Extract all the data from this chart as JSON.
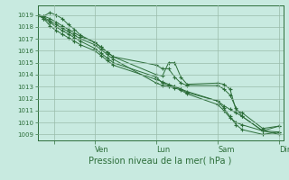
{
  "bg_color": "#c8eae0",
  "grid_color": "#99bbaa",
  "line_color": "#2d6e3a",
  "title": "Pression niveau de la mer( hPa )",
  "ylim": [
    1008.5,
    1019.8
  ],
  "yticks": [
    1009,
    1010,
    1011,
    1012,
    1013,
    1014,
    1015,
    1016,
    1017,
    1018,
    1019
  ],
  "xlim": [
    0,
    120
  ],
  "xtick_positions": [
    8,
    28,
    58,
    88,
    118
  ],
  "xtick_labels": [
    "",
    "Ven",
    "Lun",
    "Sam",
    "Dim"
  ],
  "series_x": [
    [
      0,
      3,
      6,
      9,
      12,
      15,
      18,
      21,
      28,
      31,
      34,
      37,
      58,
      61,
      64,
      67,
      70,
      73,
      88,
      91,
      94,
      97,
      100,
      110,
      118
    ],
    [
      0,
      3,
      6,
      9,
      12,
      15,
      18,
      21,
      28,
      31,
      34,
      37,
      58,
      61,
      64,
      67,
      70,
      73,
      88,
      91,
      94,
      97,
      100,
      110,
      118
    ],
    [
      0,
      3,
      6,
      9,
      12,
      15,
      18,
      21,
      28,
      31,
      34,
      37,
      58,
      61,
      64,
      67,
      70,
      73,
      88,
      91,
      94,
      97,
      100,
      110,
      118
    ],
    [
      0,
      3,
      6,
      9,
      12,
      15,
      18,
      21,
      28,
      31,
      34,
      37,
      58,
      61,
      64,
      67,
      70,
      73,
      88,
      91,
      94,
      97,
      100,
      110,
      118
    ],
    [
      0,
      3,
      6,
      9,
      12,
      15,
      18,
      21,
      28,
      31,
      34,
      37,
      58,
      61,
      64,
      67,
      70,
      73,
      88,
      91,
      94,
      97,
      100,
      110,
      118
    ]
  ],
  "series": [
    [
      1019.0,
      1018.7,
      1018.4,
      1018.0,
      1017.7,
      1017.4,
      1017.1,
      1016.8,
      1016.2,
      1015.8,
      1015.4,
      1015.0,
      1013.8,
      1013.3,
      1013.1,
      1013.0,
      1012.8,
      1012.5,
      1011.8,
      1011.4,
      1011.1,
      1010.8,
      1010.5,
      1009.3,
      1009.0
    ],
    [
      1019.0,
      1018.9,
      1019.2,
      1019.0,
      1018.7,
      1018.2,
      1017.8,
      1017.3,
      1016.7,
      1016.3,
      1015.9,
      1015.5,
      1014.8,
      1014.5,
      1014.5,
      1013.8,
      1013.3,
      1013.1,
      1013.1,
      1012.8,
      1012.3,
      1011.2,
      1010.5,
      1009.3,
      1009.7
    ],
    [
      1019.0,
      1018.9,
      1018.7,
      1018.4,
      1018.1,
      1017.8,
      1017.5,
      1017.2,
      1016.7,
      1016.3,
      1015.9,
      1015.5,
      1014.0,
      1013.9,
      1015.0,
      1015.0,
      1013.8,
      1013.2,
      1013.3,
      1013.2,
      1012.8,
      1011.0,
      1010.8,
      1009.5,
      1009.7
    ],
    [
      1019.0,
      1018.8,
      1018.5,
      1018.2,
      1017.9,
      1017.6,
      1017.3,
      1017.0,
      1016.5,
      1016.1,
      1015.7,
      1015.3,
      1013.3,
      1013.1,
      1013.0,
      1012.9,
      1012.7,
      1012.4,
      1011.5,
      1011.0,
      1010.4,
      1010.0,
      1009.8,
      1009.3,
      1009.2
    ],
    [
      1019.0,
      1018.7,
      1018.1,
      1017.7,
      1017.4,
      1017.1,
      1016.8,
      1016.5,
      1016.0,
      1015.6,
      1015.2,
      1014.8,
      1013.6,
      1013.4,
      1013.2,
      1013.0,
      1012.8,
      1012.6,
      1011.8,
      1011.2,
      1010.5,
      1009.8,
      1009.4,
      1009.0,
      1009.2
    ]
  ]
}
